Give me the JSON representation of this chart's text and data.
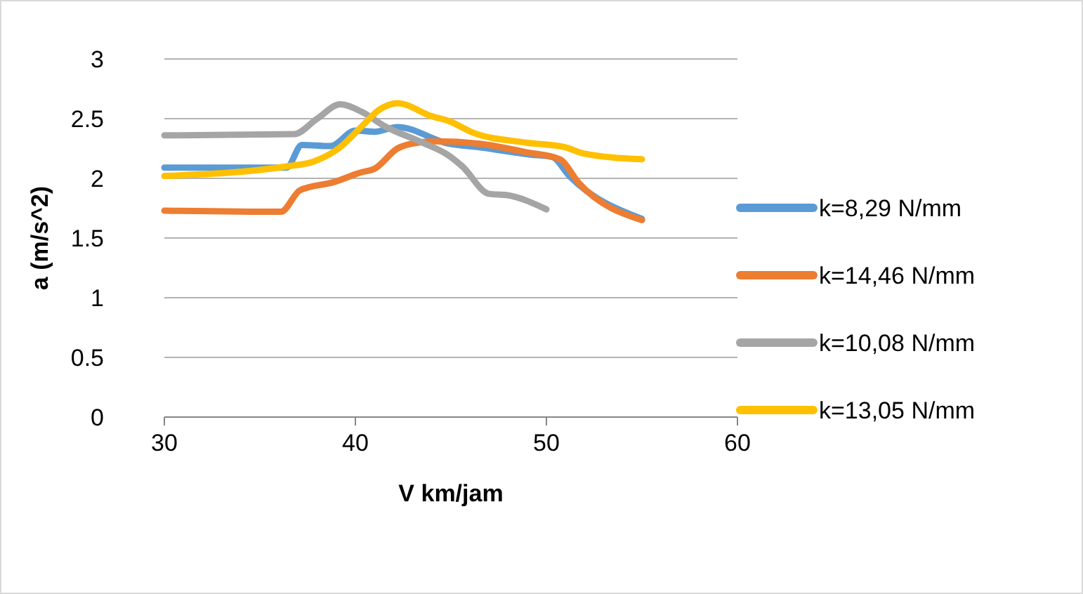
{
  "chart_data": {
    "type": "line",
    "xlabel": "V km/jam",
    "ylabel": "a (m/s^2)",
    "xlim": [
      30,
      60
    ],
    "xticks": [
      30,
      40,
      50,
      60
    ],
    "ylim": [
      0,
      3
    ],
    "yticks": [
      0,
      0.5,
      1,
      1.5,
      2,
      2.5,
      3
    ],
    "grid": "y",
    "legend": "right",
    "line_style": "solid",
    "marker": "none",
    "series": [
      {
        "name": "k=8,29 N/mm",
        "color": "#5b9bd5",
        "x": [
          30,
          36.4,
          37.2,
          38.7,
          40,
          41,
          42.2,
          44.9,
          46.5,
          49.1,
          50.3,
          51.2,
          55
        ],
        "values": [
          2.09,
          2.09,
          2.28,
          2.27,
          2.4,
          2.39,
          2.43,
          2.29,
          2.26,
          2.2,
          2.18,
          2.02,
          1.66
        ]
      },
      {
        "name": "k=14,46 N/mm",
        "color": "#ed7d31",
        "x": [
          30,
          36.1,
          37.1,
          38.9,
          40.3,
          41,
          42.2,
          43.3,
          44.2,
          46.5,
          48.9,
          50.7,
          51.7,
          55
        ],
        "values": [
          1.73,
          1.72,
          1.9,
          1.97,
          2.05,
          2.08,
          2.25,
          2.3,
          2.31,
          2.29,
          2.22,
          2.16,
          1.96,
          1.65
        ]
      },
      {
        "name": "k=10,08 N/mm",
        "color": "#a5a5a5",
        "x": [
          30,
          36.8,
          38,
          39.2,
          40.3,
          41.5,
          43.5,
          44.9,
          45.6,
          47,
          47.9,
          50
        ],
        "values": [
          2.36,
          2.37,
          2.5,
          2.62,
          2.56,
          2.44,
          2.3,
          2.19,
          2.1,
          1.87,
          1.86,
          1.74
        ]
      },
      {
        "name": "k=13,05 N/mm",
        "color": "#ffc000",
        "x": [
          30,
          36.4,
          37.8,
          39.2,
          40.3,
          41.3,
          42.2,
          44,
          44.9,
          46.2,
          48.9,
          51,
          51.9,
          55
        ],
        "values": [
          2.02,
          2.1,
          2.14,
          2.26,
          2.43,
          2.58,
          2.63,
          2.52,
          2.48,
          2.38,
          2.3,
          2.26,
          2.21,
          2.16
        ]
      }
    ]
  }
}
